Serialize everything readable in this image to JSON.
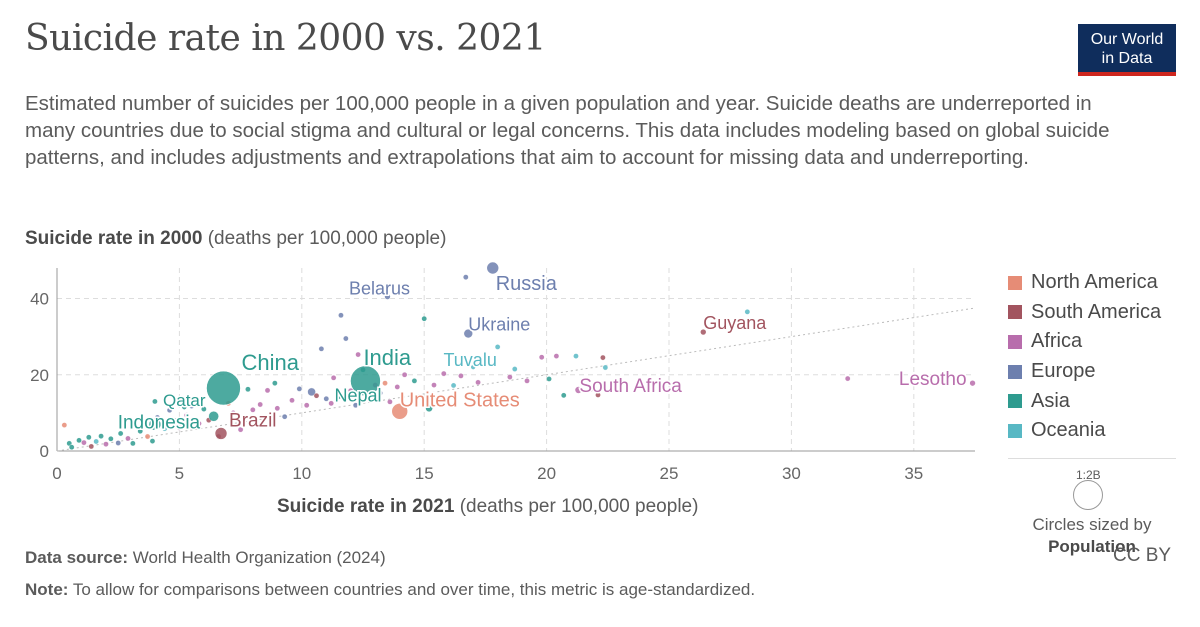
{
  "header": {
    "title": "Suicide rate in 2000 vs. 2021",
    "subtitle": "Estimated number of suicides per 100,000 people in a given population and year. Suicide deaths are underreported in many countries due to social stigma and cultural or legal concerns. This data includes modeling based on global suicide patterns, and includes adjustments and extrapolations that aim to account for missing data and underreporting.",
    "logo_line1": "Our World",
    "logo_line2": "in Data"
  },
  "axes": {
    "y_label_bold": "Suicide rate in 2000",
    "y_label_rest": " (deaths per 100,000 people)",
    "x_label_bold": "Suicide rate in 2021",
    "x_label_rest": " (deaths per 100,000 people)"
  },
  "legend": {
    "items": [
      {
        "label": "North America",
        "color": "#e68c76"
      },
      {
        "label": "South America",
        "color": "#a2545f"
      },
      {
        "label": "Africa",
        "color": "#b86dac"
      },
      {
        "label": "Europe",
        "color": "#6d7fae"
      },
      {
        "label": "Asia",
        "color": "#2e9b8f"
      },
      {
        "label": "Oceania",
        "color": "#58b8c4"
      }
    ],
    "size_caption": "1:2B",
    "size_text": "Circles sized by",
    "size_metric": "Population"
  },
  "footer": {
    "source_bold": "Data source:",
    "source_rest": " World Health Organization (2024)",
    "note_bold": "Note:",
    "note_rest": " To allow for comparisons between countries and over time, this metric is age-standardized.",
    "license": "CC BY"
  },
  "chart_data": {
    "type": "scatter",
    "xlim": [
      0,
      37.5
    ],
    "ylim": [
      0,
      48
    ],
    "x_ticks": [
      0,
      5,
      10,
      15,
      20,
      25,
      30,
      35
    ],
    "y_ticks": [
      0,
      20,
      40
    ],
    "grid": true,
    "legend_position": "right",
    "regions": {
      "North America": "#e68c76",
      "South America": "#a2545f",
      "Africa": "#b86dac",
      "Europe": "#6d7fae",
      "Asia": "#2e9b8f",
      "Oceania": "#58b8c4"
    },
    "labeled_points": [
      {
        "name": "Russia",
        "x": 17.8,
        "y": 48.0,
        "region": "Europe",
        "r": 6
      },
      {
        "name": "Belarus",
        "x": 13.5,
        "y": 40.5,
        "region": "Europe",
        "r": 3
      },
      {
        "name": "Ukraine",
        "x": 16.8,
        "y": 30.8,
        "region": "Europe",
        "r": 4.5
      },
      {
        "name": "Guyana",
        "x": 26.4,
        "y": 31.2,
        "region": "South America",
        "r": 3
      },
      {
        "name": "Tuvalu",
        "x": 17.0,
        "y": 22.0,
        "region": "Oceania",
        "r": 2.5
      },
      {
        "name": "China",
        "x": 6.8,
        "y": 16.5,
        "region": "Asia",
        "r": 17
      },
      {
        "name": "India",
        "x": 12.6,
        "y": 18.4,
        "region": "Asia",
        "r": 15
      },
      {
        "name": "Nepal",
        "x": 11.5,
        "y": 14.5,
        "region": "Asia",
        "r": 3.5
      },
      {
        "name": "Qatar",
        "x": 5.2,
        "y": 11.5,
        "region": "Asia",
        "r": 2.5
      },
      {
        "name": "Indonesia",
        "x": 4.0,
        "y": 7.0,
        "region": "Asia",
        "r": 6
      },
      {
        "name": "Brazil",
        "x": 6.7,
        "y": 4.6,
        "region": "South America",
        "r": 6
      },
      {
        "name": "United States",
        "x": 14.0,
        "y": 10.4,
        "region": "North America",
        "r": 8
      },
      {
        "name": "South Africa",
        "x": 21.3,
        "y": 16.0,
        "region": "Africa",
        "r": 3.5
      },
      {
        "name": "Lesotho",
        "x": 37.4,
        "y": 17.8,
        "region": "Africa",
        "r": 3
      }
    ],
    "other_points": [
      {
        "x": 0.3,
        "y": 6.8,
        "region": "North America"
      },
      {
        "x": 0.5,
        "y": 2.0,
        "region": "Asia"
      },
      {
        "x": 0.6,
        "y": 1.0,
        "region": "Asia"
      },
      {
        "x": 0.9,
        "y": 2.8,
        "region": "Asia"
      },
      {
        "x": 1.1,
        "y": 2.2,
        "region": "Africa"
      },
      {
        "x": 1.3,
        "y": 3.6,
        "region": "Asia"
      },
      {
        "x": 1.4,
        "y": 1.2,
        "region": "South America"
      },
      {
        "x": 1.6,
        "y": 2.5,
        "region": "Oceania"
      },
      {
        "x": 1.8,
        "y": 3.9,
        "region": "Asia"
      },
      {
        "x": 2.0,
        "y": 1.8,
        "region": "Africa"
      },
      {
        "x": 2.2,
        "y": 3.2,
        "region": "Asia"
      },
      {
        "x": 2.5,
        "y": 2.1,
        "region": "Europe"
      },
      {
        "x": 2.6,
        "y": 4.6,
        "region": "Asia"
      },
      {
        "x": 2.9,
        "y": 3.3,
        "region": "Africa"
      },
      {
        "x": 3.1,
        "y": 2.0,
        "region": "Asia"
      },
      {
        "x": 3.4,
        "y": 5.2,
        "region": "Asia"
      },
      {
        "x": 3.7,
        "y": 3.8,
        "region": "North America"
      },
      {
        "x": 3.9,
        "y": 2.6,
        "region": "Asia"
      },
      {
        "x": 4.0,
        "y": 13.0,
        "region": "Asia"
      },
      {
        "x": 4.1,
        "y": 8.8,
        "region": "Europe"
      },
      {
        "x": 4.4,
        "y": 5.9,
        "region": "Oceania"
      },
      {
        "x": 4.6,
        "y": 10.7,
        "region": "Europe"
      },
      {
        "x": 4.8,
        "y": 8.0,
        "region": "Asia"
      },
      {
        "x": 5.0,
        "y": 6.1,
        "region": "Africa"
      },
      {
        "x": 5.3,
        "y": 9.4,
        "region": "Africa"
      },
      {
        "x": 5.5,
        "y": 11.8,
        "region": "Europe"
      },
      {
        "x": 5.8,
        "y": 7.2,
        "region": "Africa"
      },
      {
        "x": 6.0,
        "y": 11.0,
        "region": "Asia"
      },
      {
        "x": 6.2,
        "y": 8.1,
        "region": "South America"
      },
      {
        "x": 6.4,
        "y": 9.1,
        "region": "Asia",
        "r": 5
      },
      {
        "x": 6.6,
        "y": 3.8,
        "region": "South America"
      },
      {
        "x": 7.0,
        "y": 12.5,
        "region": "North America"
      },
      {
        "x": 7.2,
        "y": 10.0,
        "region": "Africa"
      },
      {
        "x": 7.5,
        "y": 5.6,
        "region": "Africa"
      },
      {
        "x": 7.8,
        "y": 16.2,
        "region": "Asia"
      },
      {
        "x": 8.0,
        "y": 10.8,
        "region": "Africa"
      },
      {
        "x": 8.3,
        "y": 12.2,
        "region": "Africa"
      },
      {
        "x": 8.6,
        "y": 15.9,
        "region": "Africa"
      },
      {
        "x": 8.9,
        "y": 17.8,
        "region": "Asia"
      },
      {
        "x": 9.0,
        "y": 11.2,
        "region": "Africa"
      },
      {
        "x": 9.3,
        "y": 9.0,
        "region": "Europe"
      },
      {
        "x": 9.6,
        "y": 13.3,
        "region": "Africa"
      },
      {
        "x": 9.9,
        "y": 16.3,
        "region": "Europe"
      },
      {
        "x": 10.2,
        "y": 12.0,
        "region": "Africa"
      },
      {
        "x": 10.4,
        "y": 15.5,
        "region": "Europe",
        "r": 4
      },
      {
        "x": 10.6,
        "y": 14.5,
        "region": "South America"
      },
      {
        "x": 10.8,
        "y": 26.8,
        "region": "Europe"
      },
      {
        "x": 11.0,
        "y": 13.7,
        "region": "Europe"
      },
      {
        "x": 11.2,
        "y": 12.5,
        "region": "Africa"
      },
      {
        "x": 11.3,
        "y": 19.2,
        "region": "Africa"
      },
      {
        "x": 11.6,
        "y": 35.6,
        "region": "Europe"
      },
      {
        "x": 11.8,
        "y": 29.5,
        "region": "Europe"
      },
      {
        "x": 12.0,
        "y": 15.8,
        "region": "Africa"
      },
      {
        "x": 12.2,
        "y": 12.0,
        "region": "Europe"
      },
      {
        "x": 12.3,
        "y": 25.3,
        "region": "Africa"
      },
      {
        "x": 12.5,
        "y": 21.3,
        "region": "Asia"
      },
      {
        "x": 13.0,
        "y": 17.3,
        "region": "Africa"
      },
      {
        "x": 13.2,
        "y": 15.2,
        "region": "Europe"
      },
      {
        "x": 13.4,
        "y": 17.8,
        "region": "North America"
      },
      {
        "x": 13.6,
        "y": 12.9,
        "region": "Africa"
      },
      {
        "x": 13.9,
        "y": 16.8,
        "region": "Africa"
      },
      {
        "x": 14.2,
        "y": 20.0,
        "region": "Africa"
      },
      {
        "x": 14.6,
        "y": 18.4,
        "region": "Asia"
      },
      {
        "x": 15.0,
        "y": 34.7,
        "region": "Asia"
      },
      {
        "x": 15.2,
        "y": 11.2,
        "region": "Asia",
        "r": 3.5
      },
      {
        "x": 15.4,
        "y": 17.3,
        "region": "Africa"
      },
      {
        "x": 15.8,
        "y": 20.3,
        "region": "Africa"
      },
      {
        "x": 16.2,
        "y": 17.2,
        "region": "Oceania"
      },
      {
        "x": 16.5,
        "y": 19.7,
        "region": "Africa"
      },
      {
        "x": 16.7,
        "y": 45.6,
        "region": "Europe"
      },
      {
        "x": 17.2,
        "y": 18.0,
        "region": "Africa"
      },
      {
        "x": 18.0,
        "y": 27.3,
        "region": "Oceania"
      },
      {
        "x": 18.5,
        "y": 19.4,
        "region": "Africa"
      },
      {
        "x": 18.7,
        "y": 21.5,
        "region": "Oceania"
      },
      {
        "x": 19.2,
        "y": 18.4,
        "region": "Africa"
      },
      {
        "x": 19.8,
        "y": 24.6,
        "region": "Africa"
      },
      {
        "x": 20.1,
        "y": 18.9,
        "region": "Asia"
      },
      {
        "x": 20.4,
        "y": 24.9,
        "region": "Africa"
      },
      {
        "x": 20.7,
        "y": 14.6,
        "region": "Asia"
      },
      {
        "x": 21.2,
        "y": 24.9,
        "region": "Oceania"
      },
      {
        "x": 21.8,
        "y": 16.2,
        "region": "Africa"
      },
      {
        "x": 22.1,
        "y": 14.7,
        "region": "South America"
      },
      {
        "x": 22.3,
        "y": 24.5,
        "region": "South America"
      },
      {
        "x": 22.4,
        "y": 21.9,
        "region": "Oceania"
      },
      {
        "x": 28.2,
        "y": 36.5,
        "region": "Oceania"
      },
      {
        "x": 32.3,
        "y": 19.0,
        "region": "Africa"
      }
    ],
    "reference_line": {
      "from": [
        0,
        0
      ],
      "to": [
        37.5,
        37.5
      ]
    }
  }
}
